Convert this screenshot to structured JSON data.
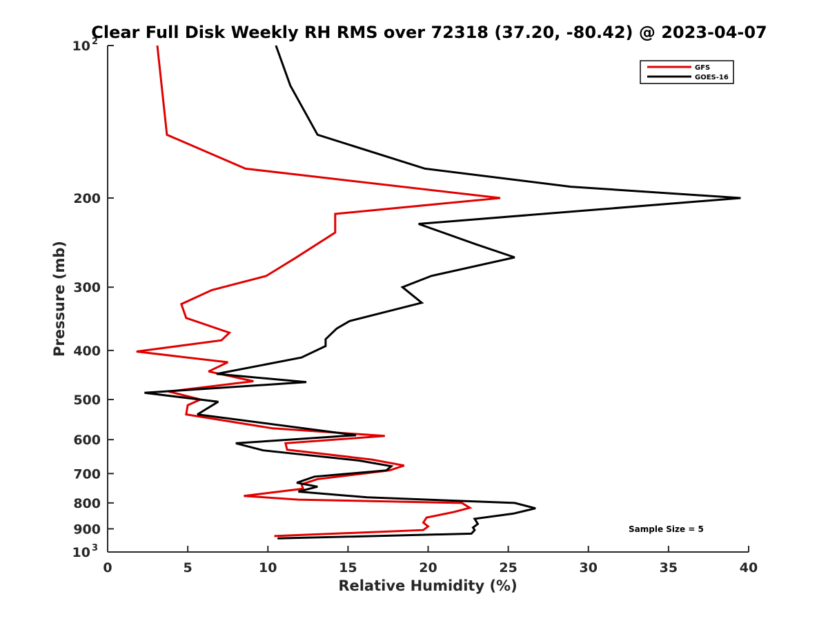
{
  "chart_data": {
    "type": "line",
    "title": "Clear Full Disk Weekly RH RMS over 72318 (37.20, -80.42) @ 2023-04-07",
    "xlabel": "Relative Humidity (%)",
    "ylabel": "Pressure (mb)",
    "xlim": [
      0,
      40
    ],
    "ylim": [
      100,
      1000
    ],
    "y_scale": "log",
    "y_reversed": true,
    "grid": false,
    "legend_position": "top-right",
    "x_ticks": [
      {
        "value": 0,
        "label": "0"
      },
      {
        "value": 5,
        "label": "5"
      },
      {
        "value": 10,
        "label": "10"
      },
      {
        "value": 15,
        "label": "15"
      },
      {
        "value": 20,
        "label": "20"
      },
      {
        "value": 25,
        "label": "25"
      },
      {
        "value": 30,
        "label": "30"
      },
      {
        "value": 35,
        "label": "35"
      },
      {
        "value": 40,
        "label": "40"
      }
    ],
    "y_ticks": [
      {
        "value": 100,
        "base": "10",
        "exp": "2"
      },
      {
        "value": 200,
        "label": "200"
      },
      {
        "value": 300,
        "label": "300"
      },
      {
        "value": 400,
        "label": "400"
      },
      {
        "value": 500,
        "label": "500"
      },
      {
        "value": 600,
        "label": "600"
      },
      {
        "value": 700,
        "label": "700"
      },
      {
        "value": 800,
        "label": "800"
      },
      {
        "value": 900,
        "label": "900"
      },
      {
        "value": 1000,
        "base": "10",
        "exp": "3"
      }
    ],
    "series": [
      {
        "name": "GFS",
        "color": "#e00000",
        "points": [
          [
            3.1,
            100
          ],
          [
            3.7,
            150
          ],
          [
            8.6,
            175
          ],
          [
            24.5,
            200
          ],
          [
            14.2,
            215
          ],
          [
            14.2,
            234
          ],
          [
            11.7,
            263
          ],
          [
            9.9,
            285
          ],
          [
            6.5,
            304
          ],
          [
            4.6,
            324
          ],
          [
            4.9,
            345
          ],
          [
            7.6,
            369
          ],
          [
            7.1,
            382
          ],
          [
            1.8,
            402
          ],
          [
            7.5,
            422
          ],
          [
            6.3,
            440
          ],
          [
            9.1,
            460
          ],
          [
            3.8,
            482
          ],
          [
            5.8,
            500
          ],
          [
            5.0,
            513
          ],
          [
            4.9,
            535
          ],
          [
            10.3,
            570
          ],
          [
            17.3,
            590
          ],
          [
            11.1,
            610
          ],
          [
            11.2,
            628
          ],
          [
            16.5,
            657
          ],
          [
            18.5,
            675
          ],
          [
            17.6,
            690
          ],
          [
            13.1,
            718
          ],
          [
            12.1,
            735
          ],
          [
            12.2,
            750
          ],
          [
            8.5,
            775
          ],
          [
            11.9,
            788
          ],
          [
            22.1,
            800
          ],
          [
            22.6,
            818
          ],
          [
            21.6,
            834
          ],
          [
            19.9,
            855
          ],
          [
            19.7,
            875
          ],
          [
            20.0,
            890
          ],
          [
            19.7,
            905
          ],
          [
            10.4,
            930
          ]
        ]
      },
      {
        "name": "GOES-16",
        "color": "#000000",
        "points": [
          [
            10.5,
            100
          ],
          [
            11.4,
            120
          ],
          [
            13.1,
            150
          ],
          [
            19.8,
            175
          ],
          [
            28.9,
            190
          ],
          [
            39.5,
            200
          ],
          [
            19.4,
            225
          ],
          [
            23.0,
            247
          ],
          [
            25.4,
            262
          ],
          [
            20.2,
            285
          ],
          [
            18.4,
            300
          ],
          [
            19.6,
            322
          ],
          [
            15.1,
            350
          ],
          [
            14.3,
            362
          ],
          [
            13.6,
            380
          ],
          [
            13.6,
            392
          ],
          [
            12.1,
            413
          ],
          [
            6.8,
            445
          ],
          [
            12.4,
            462
          ],
          [
            2.3,
            485
          ],
          [
            6.9,
            505
          ],
          [
            5.6,
            535
          ],
          [
            15.5,
            588
          ],
          [
            8.0,
            610
          ],
          [
            9.7,
            630
          ],
          [
            15.7,
            660
          ],
          [
            17.7,
            677
          ],
          [
            17.4,
            690
          ],
          [
            12.9,
            710
          ],
          [
            11.8,
            730
          ],
          [
            13.1,
            743
          ],
          [
            11.9,
            760
          ],
          [
            16.2,
            780
          ],
          [
            25.4,
            800
          ],
          [
            26.7,
            820
          ],
          [
            25.3,
            840
          ],
          [
            22.9,
            860
          ],
          [
            23.1,
            880
          ],
          [
            22.8,
            895
          ],
          [
            22.9,
            905
          ],
          [
            22.7,
            920
          ],
          [
            10.6,
            940
          ]
        ]
      }
    ],
    "annotation": "Sample Size = 5"
  }
}
